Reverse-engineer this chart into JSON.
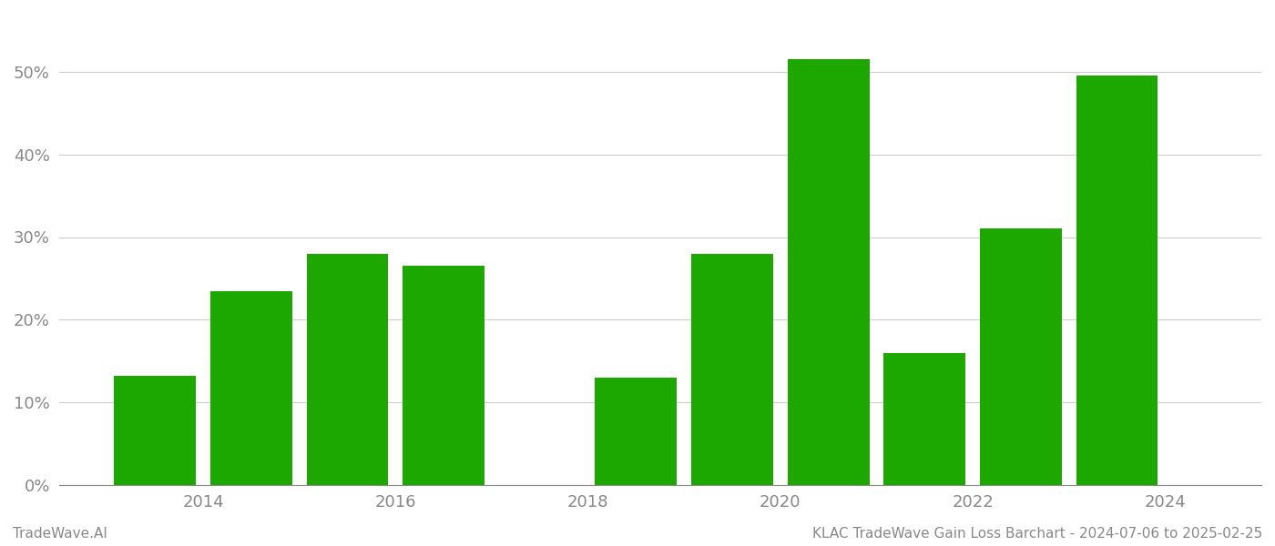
{
  "years": [
    2013.5,
    2014.5,
    2015.5,
    2016.5,
    2018.5,
    2019.5,
    2020.5,
    2021.5,
    2022.5,
    2023.5
  ],
  "values": [
    13.2,
    23.5,
    28.0,
    26.5,
    13.0,
    28.0,
    51.5,
    16.0,
    31.0,
    49.5
  ],
  "bar_color": "#1da800",
  "footer_left": "TradeWave.AI",
  "footer_right": "KLAC TradeWave Gain Loss Barchart - 2024-07-06 to 2025-02-25",
  "xlim": [
    2012.5,
    2025.0
  ],
  "ylim": [
    0,
    57
  ],
  "yticks": [
    0,
    10,
    20,
    30,
    40,
    50
  ],
  "xticks": [
    2014,
    2016,
    2018,
    2020,
    2022,
    2024
  ],
  "grid_color": "#cccccc",
  "background_color": "#ffffff",
  "tick_color": "#888888",
  "bar_width": 0.85
}
